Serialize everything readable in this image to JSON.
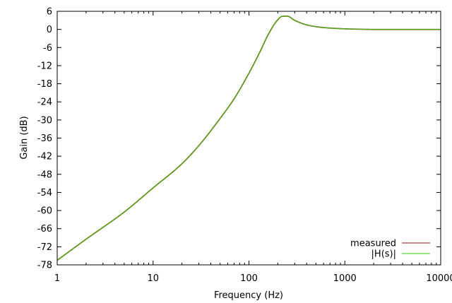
{
  "chart_data": {
    "type": "line",
    "title": "",
    "xlabel": "Frequency (Hz)",
    "ylabel": "Gain (dB)",
    "x_scale": "log",
    "xlim": [
      1,
      10000
    ],
    "ylim": [
      -78,
      6
    ],
    "x_ticks": [
      1,
      10,
      100,
      1000,
      10000
    ],
    "x_tick_labels": [
      "1",
      "10",
      "100",
      "1000",
      "10000"
    ],
    "y_ticks": [
      6,
      0,
      -6,
      -12,
      -18,
      -24,
      -30,
      -36,
      -42,
      -48,
      -54,
      -60,
      -66,
      -72,
      -78
    ],
    "y_tick_labels": [
      "6",
      "0",
      "-6",
      "-12",
      "-18",
      "-24",
      "-30",
      "-36",
      "-42",
      "-48",
      "-54",
      "-60",
      "-66",
      "-72",
      "-78"
    ],
    "grid": false,
    "legend_position": "bottom-right",
    "series": [
      {
        "name": "measured",
        "color": "#8b1a0e",
        "x": [
          1,
          2,
          5,
          10,
          20,
          30,
          50,
          70,
          100,
          130,
          160,
          200,
          220,
          250,
          300,
          400,
          600,
          1000,
          2000,
          5000,
          10000
        ],
        "y": [
          -76.5,
          -69.5,
          -60.5,
          -52.5,
          -44.5,
          -38.5,
          -29.5,
          -23.0,
          -14.5,
          -7.5,
          -1.5,
          3.2,
          4.3,
          4.4,
          3.0,
          1.5,
          0.6,
          0.2,
          0.0,
          0.0,
          0.0
        ]
      },
      {
        "name": "|H(s)|",
        "color": "#33cc00",
        "x": [
          1,
          2,
          5,
          10,
          20,
          30,
          50,
          70,
          100,
          130,
          160,
          200,
          220,
          250,
          300,
          400,
          600,
          1000,
          2000,
          5000,
          10000
        ],
        "y": [
          -76.5,
          -69.5,
          -60.5,
          -52.5,
          -44.5,
          -38.5,
          -29.5,
          -23.0,
          -14.5,
          -7.5,
          -1.5,
          3.2,
          4.3,
          4.4,
          3.0,
          1.5,
          0.6,
          0.2,
          0.0,
          0.0,
          0.0
        ]
      }
    ]
  }
}
